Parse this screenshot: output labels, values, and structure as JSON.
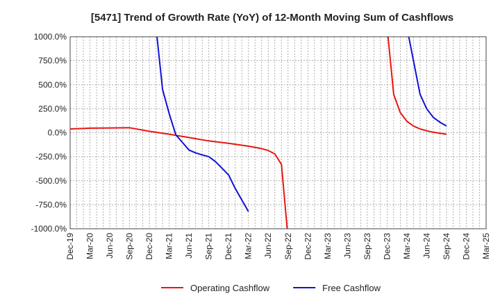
{
  "chart_data": {
    "type": "line",
    "title": "[5471]  Trend of Growth Rate (YoY) of 12-Month Moving Sum of Cashflows",
    "xlabel": "",
    "ylabel": "",
    "y_ticks": [
      "1000.0%",
      "750.0%",
      "500.0%",
      "250.0%",
      "0.0%",
      "-250.0%",
      "-500.0%",
      "-750.0%",
      "-1000.0%"
    ],
    "x_ticks": [
      "Dec-19",
      "Mar-20",
      "Jun-20",
      "Sep-20",
      "Dec-20",
      "Mar-21",
      "Jun-21",
      "Sep-21",
      "Dec-21",
      "Mar-22",
      "Jun-22",
      "Sep-22",
      "Dec-22",
      "Mar-23",
      "Jun-23",
      "Sep-23",
      "Dec-23",
      "Mar-24",
      "Jun-24",
      "Sep-24",
      "Dec-24",
      "Mar-25"
    ],
    "ylim": [
      -1000,
      1000
    ],
    "grid": true,
    "legend_position": "bottom",
    "series": [
      {
        "name": "Operating Cashflow",
        "color": "#e8150f",
        "segments": [
          [
            [
              "Dec-19",
              40
            ],
            [
              "Mar-20",
              48
            ],
            [
              "Jun-20",
              50
            ],
            [
              "Sep-20",
              52
            ],
            [
              "Dec-20",
              15
            ],
            [
              "Mar-21",
              -15
            ],
            [
              "Jun-21",
              -50
            ],
            [
              "Sep-21",
              -85
            ],
            [
              "Dec-21",
              -110
            ],
            [
              "Mar-22",
              -140
            ],
            [
              "May-22",
              -165
            ],
            [
              "Jun-22",
              -185
            ],
            [
              "Jul-22",
              -220
            ],
            [
              "Aug-22",
              -330
            ],
            [
              "Sep-22",
              -1100
            ]
          ],
          [
            [
              "Dec-23",
              1100
            ],
            [
              "Jan-24",
              400
            ],
            [
              "Feb-24",
              210
            ],
            [
              "Mar-24",
              120
            ],
            [
              "Apr-24",
              70
            ],
            [
              "May-24",
              40
            ],
            [
              "Jun-24",
              20
            ],
            [
              "Jul-24",
              5
            ],
            [
              "Aug-24",
              -5
            ],
            [
              "Sep-24",
              -15
            ]
          ]
        ]
      },
      {
        "name": "Free Cashflow",
        "color": "#1010d8",
        "segments": [
          [
            [
              "Jan-21",
              1100
            ],
            [
              "Feb-21",
              450
            ],
            [
              "Mar-21",
              200
            ],
            [
              "Apr-21",
              -20
            ],
            [
              "May-21",
              -100
            ],
            [
              "Jun-21",
              -180
            ],
            [
              "Jul-21",
              -210
            ],
            [
              "Aug-21",
              -230
            ],
            [
              "Sep-21",
              -250
            ],
            [
              "Oct-21",
              -300
            ],
            [
              "Nov-21",
              -370
            ],
            [
              "Dec-21",
              -440
            ],
            [
              "Jan-22",
              -580
            ],
            [
              "Mar-22",
              -820
            ]
          ],
          [
            [
              "Mar-24",
              1100
            ],
            [
              "Apr-24",
              750
            ],
            [
              "May-24",
              400
            ],
            [
              "Jun-24",
              250
            ],
            [
              "Jul-24",
              160
            ],
            [
              "Aug-24",
              110
            ],
            [
              "Sep-24",
              70
            ]
          ]
        ]
      }
    ]
  }
}
